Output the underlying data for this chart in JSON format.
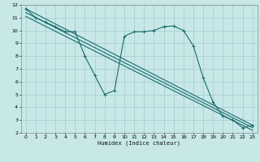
{
  "xlabel": "Humidex (Indice chaleur)",
  "background_color": "#c8e8e8",
  "grid_color": "#a8d0d0",
  "line_color": "#1a6b6b",
  "series": {
    "main": {
      "x": [
        0,
        1,
        2,
        3,
        4,
        5,
        6,
        7,
        8,
        9,
        10,
        11,
        12,
        13,
        14,
        15,
        16,
        17,
        18,
        19,
        20,
        21,
        22,
        23
      ],
      "y": [
        11.7,
        11.0,
        10.65,
        10.3,
        9.9,
        9.9,
        8.0,
        6.5,
        5.0,
        5.3,
        9.55,
        9.9,
        9.9,
        10.0,
        10.3,
        10.35,
        10.0,
        8.8,
        6.3,
        4.4,
        3.3,
        3.0,
        2.4,
        2.6
      ]
    },
    "ref1": {
      "x": [
        0,
        23
      ],
      "y": [
        11.7,
        2.6
      ]
    },
    "ref2": {
      "x": [
        0,
        23
      ],
      "y": [
        11.4,
        2.4
      ]
    },
    "ref3": {
      "x": [
        0,
        23
      ],
      "y": [
        11.1,
        2.2
      ]
    }
  },
  "xlim": [
    -0.5,
    23.5
  ],
  "ylim": [
    2,
    12
  ],
  "yticks": [
    2,
    3,
    4,
    5,
    6,
    7,
    8,
    9,
    10,
    11,
    12
  ],
  "xticks": [
    0,
    1,
    2,
    3,
    4,
    5,
    6,
    7,
    8,
    9,
    10,
    11,
    12,
    13,
    14,
    15,
    16,
    17,
    18,
    19,
    20,
    21,
    22,
    23
  ]
}
